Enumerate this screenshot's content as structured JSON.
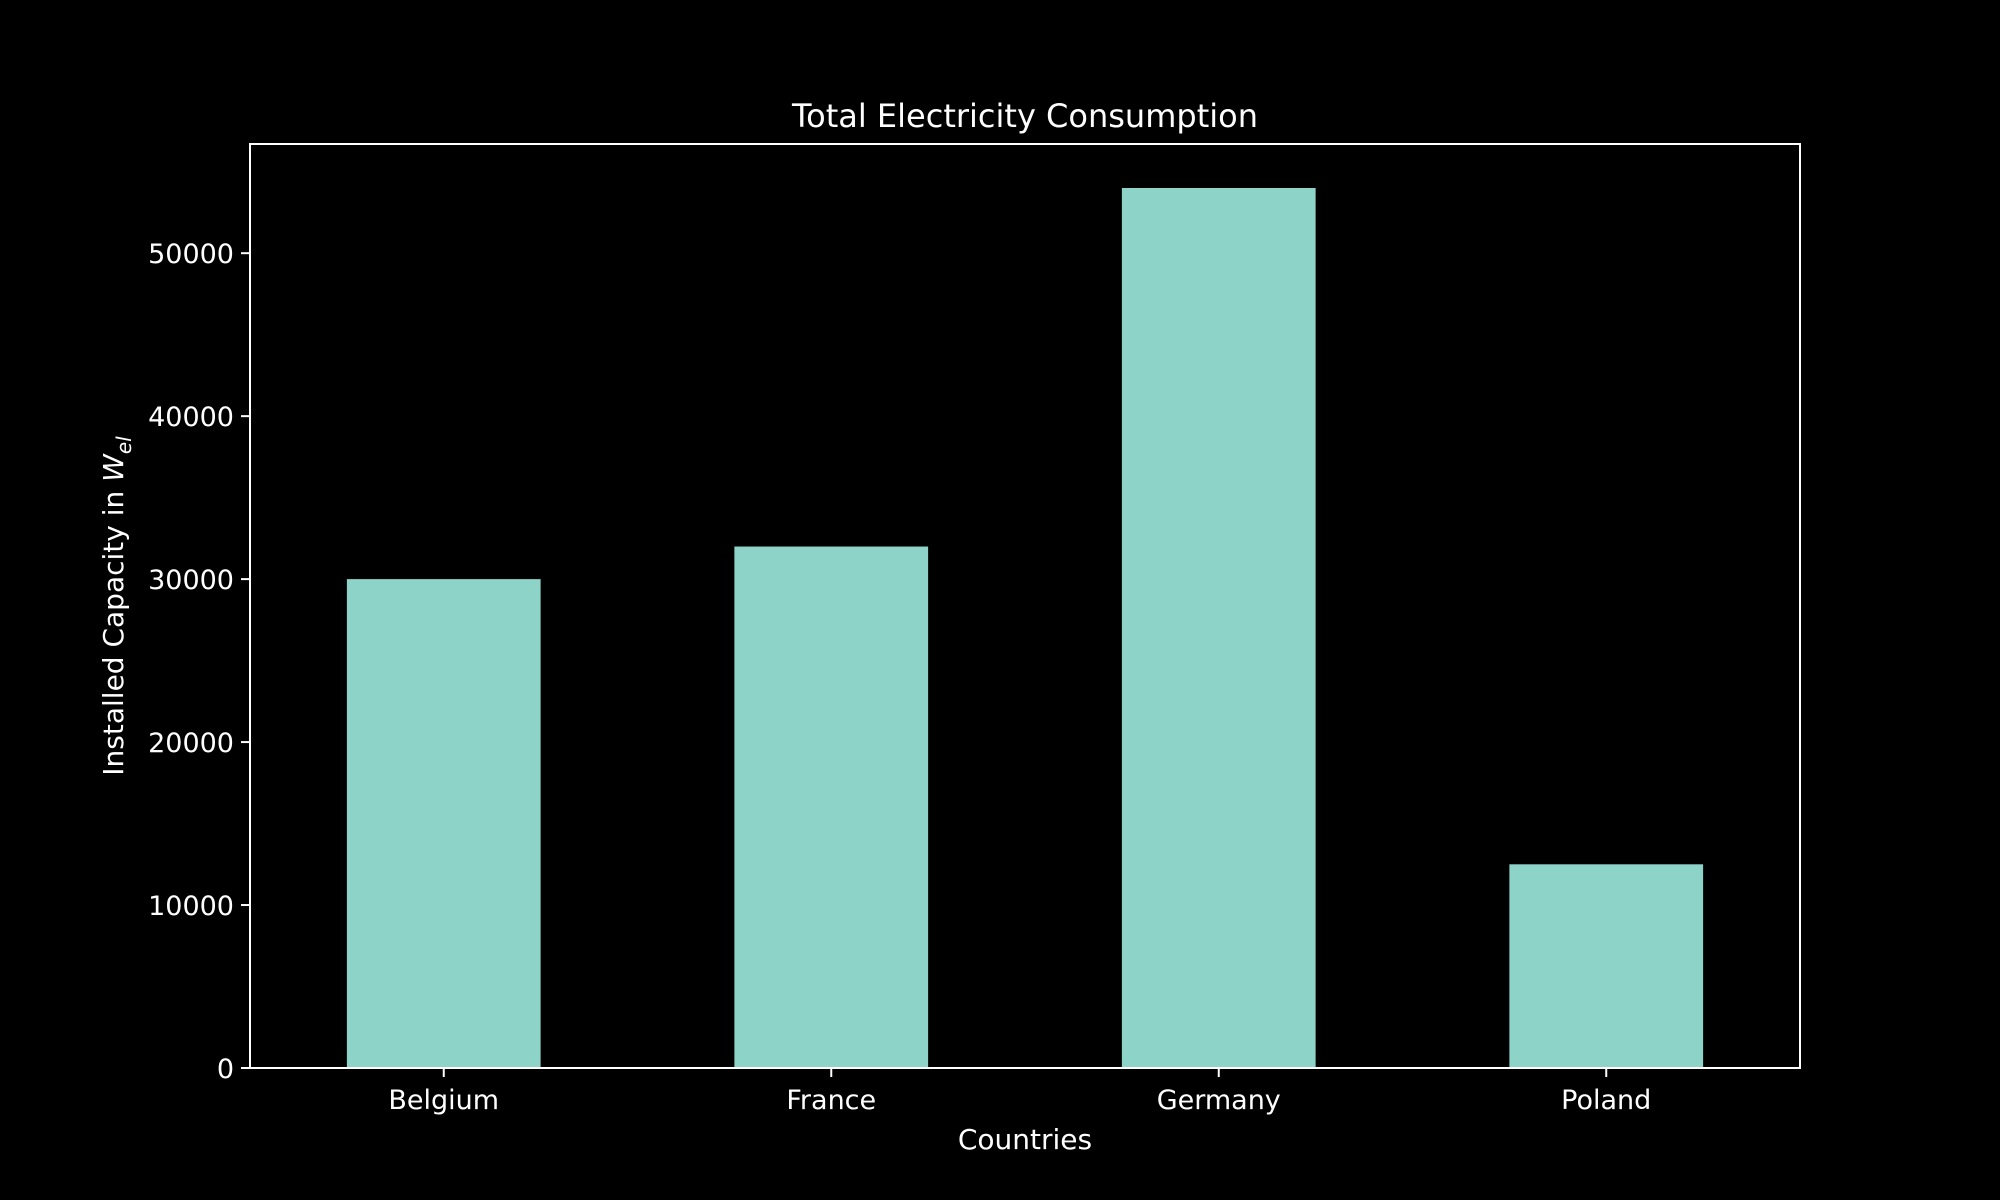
{
  "chart_data": {
    "type": "bar",
    "title": "Total Electricity Consumption",
    "xlabel": "Countries",
    "ylabel": "Installed Capacity in",
    "ylabel_math_base": "W",
    "ylabel_math_subscript": "el",
    "categories": [
      "Belgium",
      "France",
      "Germany",
      "Poland"
    ],
    "values": [
      30000,
      32000,
      54000,
      12500
    ],
    "ylim": [
      0,
      56700
    ],
    "yticks": [
      0,
      10000,
      20000,
      30000,
      40000,
      50000
    ],
    "ytick_labels": [
      "0",
      "10000",
      "20000",
      "30000",
      "40000",
      "50000"
    ],
    "grid": false,
    "legend": "none",
    "colors": {
      "background": "#000000",
      "bar": "#8dd3c7",
      "axes": "#ffffff",
      "text": "#ffffff"
    }
  }
}
